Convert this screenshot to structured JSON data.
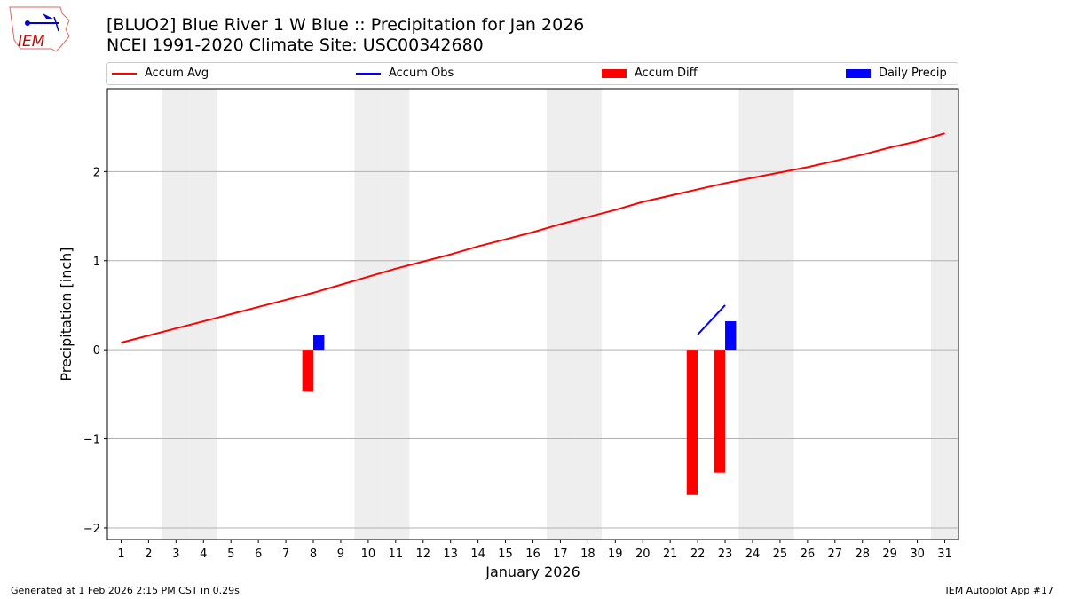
{
  "header": {
    "title_line1": "[BLUO2] Blue River 1 W Blue :: Precipitation for Jan 2026",
    "title_line2": "NCEI 1991-2020 Climate Site: USC00342680",
    "logo_text": "IEM"
  },
  "footer": {
    "left": "Generated at 1 Feb 2026 2:15 PM CST in 0.29s",
    "right": "IEM Autoplot App #17"
  },
  "colors": {
    "accum_avg": "#ff0000",
    "accum_obs": "#0000ff",
    "accum_diff": "#ff0000",
    "daily_precip": "#0000ff",
    "weekend": "#eeeeee",
    "grid": "#b0b0b0"
  },
  "chart_data": {
    "type": "bar+line",
    "xlabel": "January 2026",
    "ylabel": "Precipitation [inch]",
    "xlim": [
      0.5,
      31.5
    ],
    "ylim": [
      -2.13,
      2.93
    ],
    "grid": "y",
    "legend_placement": "top, above plot",
    "x_ticks": [
      1,
      2,
      3,
      4,
      5,
      6,
      7,
      8,
      9,
      10,
      11,
      12,
      13,
      14,
      15,
      16,
      17,
      18,
      19,
      20,
      21,
      22,
      23,
      24,
      25,
      26,
      27,
      28,
      29,
      30,
      31
    ],
    "y_ticks": [
      -2,
      -1,
      0,
      1,
      2
    ],
    "y_tick_labels": [
      "−2",
      "−1",
      "0",
      "1",
      "2"
    ],
    "weekend_days": [
      3,
      4,
      10,
      11,
      17,
      18,
      24,
      25,
      31
    ],
    "series": [
      {
        "name": "Accum Avg",
        "kind": "line",
        "x": [
          1,
          2,
          3,
          4,
          5,
          6,
          7,
          8,
          9,
          10,
          11,
          12,
          13,
          14,
          15,
          16,
          17,
          18,
          19,
          20,
          21,
          22,
          23,
          24,
          25,
          26,
          27,
          28,
          29,
          30,
          31
        ],
        "values": [
          0.08,
          0.16,
          0.24,
          0.32,
          0.4,
          0.48,
          0.56,
          0.64,
          0.73,
          0.82,
          0.91,
          0.99,
          1.07,
          1.16,
          1.24,
          1.32,
          1.41,
          1.49,
          1.57,
          1.66,
          1.73,
          1.8,
          1.87,
          1.93,
          1.99,
          2.05,
          2.12,
          2.19,
          2.27,
          2.34,
          2.43
        ]
      },
      {
        "name": "Accum Obs",
        "kind": "line",
        "x": [
          22,
          23
        ],
        "values": [
          0.17,
          0.5
        ]
      },
      {
        "name": "Accum Diff",
        "kind": "bar",
        "x": [
          8,
          22,
          23
        ],
        "values": [
          -0.47,
          -1.63,
          -1.38
        ]
      },
      {
        "name": "Daily Precip",
        "kind": "bar",
        "x": [
          8,
          23
        ],
        "values": [
          0.17,
          0.32
        ]
      }
    ]
  }
}
